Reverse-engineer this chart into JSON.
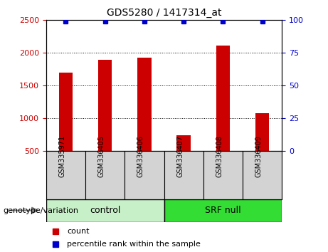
{
  "title": "GDS5280 / 1417314_at",
  "samples": [
    "GSM335971",
    "GSM336405",
    "GSM336406",
    "GSM336407",
    "GSM336408",
    "GSM336409"
  ],
  "counts": [
    1700,
    1890,
    1930,
    740,
    2110,
    1075
  ],
  "percentile_ranks": [
    99,
    99,
    99,
    99,
    99,
    99
  ],
  "ylim_left": [
    500,
    2500
  ],
  "ylim_right": [
    0,
    100
  ],
  "yticks_left": [
    500,
    1000,
    1500,
    2000,
    2500
  ],
  "yticks_right": [
    0,
    25,
    50,
    75,
    100
  ],
  "bar_color": "#cc0000",
  "dot_color": "#0000cc",
  "groups": [
    {
      "label": "control",
      "indices": [
        0,
        1,
        2
      ],
      "color": "#c8f0c8"
    },
    {
      "label": "SRF null",
      "indices": [
        3,
        4,
        5
      ],
      "color": "#33dd33"
    }
  ],
  "group_label_prefix": "genotype/variation",
  "legend_count_label": "count",
  "legend_percentile_label": "percentile rank within the sample",
  "tick_label_color_left": "#cc0000",
  "tick_label_color_right": "#0000cc",
  "background_color": "#ffffff",
  "plot_bg_color": "#ffffff",
  "sample_bg_color": "#d3d3d3"
}
